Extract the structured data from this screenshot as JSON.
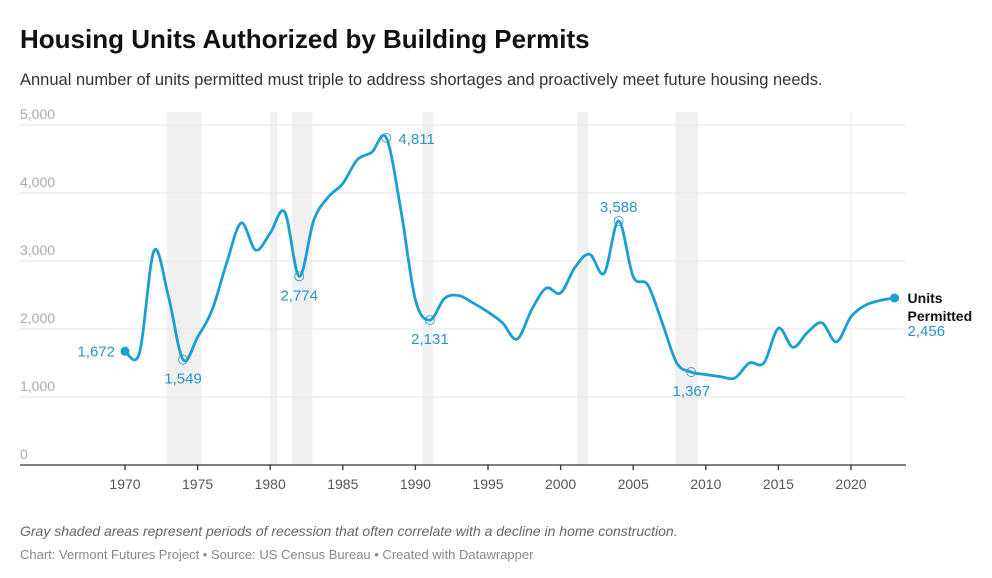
{
  "title": "Housing Units Authorized by Building Permits",
  "subtitle": "Annual number of units permitted must triple to address shortages and proactively meet future housing needs.",
  "note": "Gray shaded areas represent periods of recession that often correlate with a decline in home construction.",
  "credits": "Chart: Vermont Futures Project • Source: US Census Bureau • Created with Datawrapper",
  "colors": {
    "line": "#1a9fd0",
    "label": "#2a95c4",
    "recession": "#f0f0f0",
    "grid": "#e6e6e6"
  },
  "chart_data": {
    "type": "line",
    "title": "Housing Units Authorized by Building Permits",
    "xlim": [
      1965,
      2025
    ],
    "ylim": [
      0,
      5000
    ],
    "grid": true,
    "x_ticks": [
      1970,
      1975,
      1980,
      1985,
      1990,
      1995,
      2000,
      2005,
      2010,
      2015,
      2020
    ],
    "x_tick_labels": [
      "1970",
      "1975",
      "1980",
      "1985",
      "1990",
      "1995",
      "2000",
      "2005",
      "2010",
      "2015",
      "2020"
    ],
    "y_ticks": [
      0,
      1000,
      2000,
      3000,
      4000,
      5000
    ],
    "y_tick_labels": [
      "0",
      "1,000",
      "2,000",
      "3,000",
      "4,000",
      "5,000"
    ],
    "series": [
      {
        "name": "Units Permitted",
        "x": [
          1970,
          1971,
          1972,
          1973,
          1974,
          1975,
          1976,
          1977,
          1978,
          1979,
          1980,
          1981,
          1982,
          1983,
          1984,
          1985,
          1986,
          1987,
          1988,
          1989,
          1990,
          1991,
          1992,
          1993,
          1994,
          1995,
          1996,
          1997,
          1998,
          1999,
          2000,
          2001,
          2002,
          2003,
          2004,
          2005,
          2006,
          2007,
          2008,
          2009,
          2010,
          2011,
          2012,
          2013,
          2014,
          2015,
          2016,
          2017,
          2018,
          2019,
          2020,
          2021,
          2022,
          2023
        ],
        "values": [
          1672,
          1650,
          3150,
          2470,
          1549,
          1880,
          2280,
          2970,
          3560,
          3160,
          3410,
          3720,
          2774,
          3600,
          3940,
          4140,
          4490,
          4600,
          4811,
          3750,
          2430,
          2131,
          2450,
          2490,
          2380,
          2250,
          2090,
          1850,
          2280,
          2600,
          2530,
          2910,
          3100,
          2820,
          3588,
          2770,
          2650,
          2090,
          1500,
          1367,
          1330,
          1300,
          1280,
          1500,
          1500,
          2010,
          1730,
          1950,
          2090,
          1810,
          2180,
          2350,
          2420,
          2456
        ]
      }
    ],
    "recessions": [
      [
        1972.9,
        1975.25
      ],
      [
        1980.0,
        1980.5
      ],
      [
        1981.5,
        1982.9
      ],
      [
        1990.5,
        1991.2
      ],
      [
        2001.15,
        2001.9
      ],
      [
        2007.9,
        2009.45
      ]
    ],
    "annotations": [
      {
        "year": 1970,
        "value": 1672,
        "label": "1,672",
        "style": "filled",
        "pos": "left"
      },
      {
        "year": 1974,
        "value": 1549,
        "label": "1,549",
        "style": "hollow",
        "pos": "below"
      },
      {
        "year": 1982,
        "value": 2774,
        "label": "2,774",
        "style": "hollow",
        "pos": "below"
      },
      {
        "year": 1988,
        "value": 4811,
        "label": "4,811",
        "style": "hollow",
        "pos": "right"
      },
      {
        "year": 1991,
        "value": 2131,
        "label": "2,131",
        "style": "hollow",
        "pos": "below"
      },
      {
        "year": 2004,
        "value": 3588,
        "label": "3,588",
        "style": "hollow",
        "pos": "above"
      },
      {
        "year": 2009,
        "value": 1367,
        "label": "1,367",
        "style": "hollow",
        "pos": "below"
      },
      {
        "year": 2023,
        "value": 2456,
        "label": "2,456",
        "style": "filled",
        "pos": "end"
      }
    ],
    "end_label": [
      "Units",
      "Permitted"
    ]
  }
}
